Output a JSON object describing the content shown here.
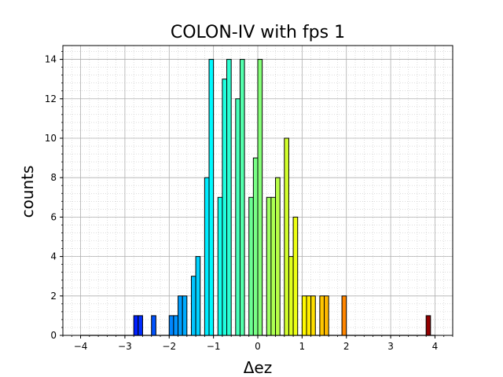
{
  "chart_data": {
    "type": "histogram",
    "title": "COLON-IV with fps 1",
    "xlabel": "Δez",
    "ylabel": "counts",
    "xlim": [
      -4.4,
      4.4
    ],
    "ylim": [
      0,
      14.7
    ],
    "xticks": [
      "−4",
      "−3",
      "−2",
      "−1",
      "0",
      "1",
      "2",
      "3",
      "4"
    ],
    "yticks": [
      "0",
      "2",
      "4",
      "6",
      "8",
      "10",
      "12",
      "14"
    ],
    "grid": "major and minor",
    "colormap": "jet",
    "bin_range": [
      -4,
      4
    ],
    "bin_count": 80,
    "bins": [
      {
        "x0": -2.8,
        "x1": -2.7,
        "count": 1
      },
      {
        "x0": -2.7,
        "x1": -2.6,
        "count": 1
      },
      {
        "x0": -2.4,
        "x1": -2.3,
        "count": 1
      },
      {
        "x0": -2.0,
        "x1": -1.9,
        "count": 1
      },
      {
        "x0": -1.9,
        "x1": -1.8,
        "count": 1
      },
      {
        "x0": -1.8,
        "x1": -1.7,
        "count": 2
      },
      {
        "x0": -1.7,
        "x1": -1.6,
        "count": 2
      },
      {
        "x0": -1.5,
        "x1": -1.4,
        "count": 3
      },
      {
        "x0": -1.4,
        "x1": -1.3,
        "count": 4
      },
      {
        "x0": -1.2,
        "x1": -1.1,
        "count": 8
      },
      {
        "x0": -1.1,
        "x1": -1.0,
        "count": 14
      },
      {
        "x0": -0.9,
        "x1": -0.8,
        "count": 7
      },
      {
        "x0": -0.8,
        "x1": -0.7,
        "count": 13
      },
      {
        "x0": -0.7,
        "x1": -0.6,
        "count": 14
      },
      {
        "x0": -0.5,
        "x1": -0.4,
        "count": 12
      },
      {
        "x0": -0.4,
        "x1": -0.3,
        "count": 14
      },
      {
        "x0": -0.2,
        "x1": -0.1,
        "count": 7
      },
      {
        "x0": -0.1,
        "x1": 0.0,
        "count": 9
      },
      {
        "x0": 0.0,
        "x1": 0.1,
        "count": 14
      },
      {
        "x0": 0.2,
        "x1": 0.3,
        "count": 7
      },
      {
        "x0": 0.3,
        "x1": 0.4,
        "count": 7
      },
      {
        "x0": 0.4,
        "x1": 0.5,
        "count": 8
      },
      {
        "x0": 0.6,
        "x1": 0.7,
        "count": 10
      },
      {
        "x0": 0.7,
        "x1": 0.8,
        "count": 4
      },
      {
        "x0": 0.8,
        "x1": 0.9,
        "count": 6
      },
      {
        "x0": 1.0,
        "x1": 1.1,
        "count": 2
      },
      {
        "x0": 1.1,
        "x1": 1.2,
        "count": 2
      },
      {
        "x0": 1.2,
        "x1": 1.3,
        "count": 2
      },
      {
        "x0": 1.4,
        "x1": 1.5,
        "count": 2
      },
      {
        "x0": 1.5,
        "x1": 1.6,
        "count": 2
      },
      {
        "x0": 1.9,
        "x1": 2.0,
        "count": 2
      },
      {
        "x0": 3.8,
        "x1": 3.9,
        "count": 1
      }
    ]
  }
}
